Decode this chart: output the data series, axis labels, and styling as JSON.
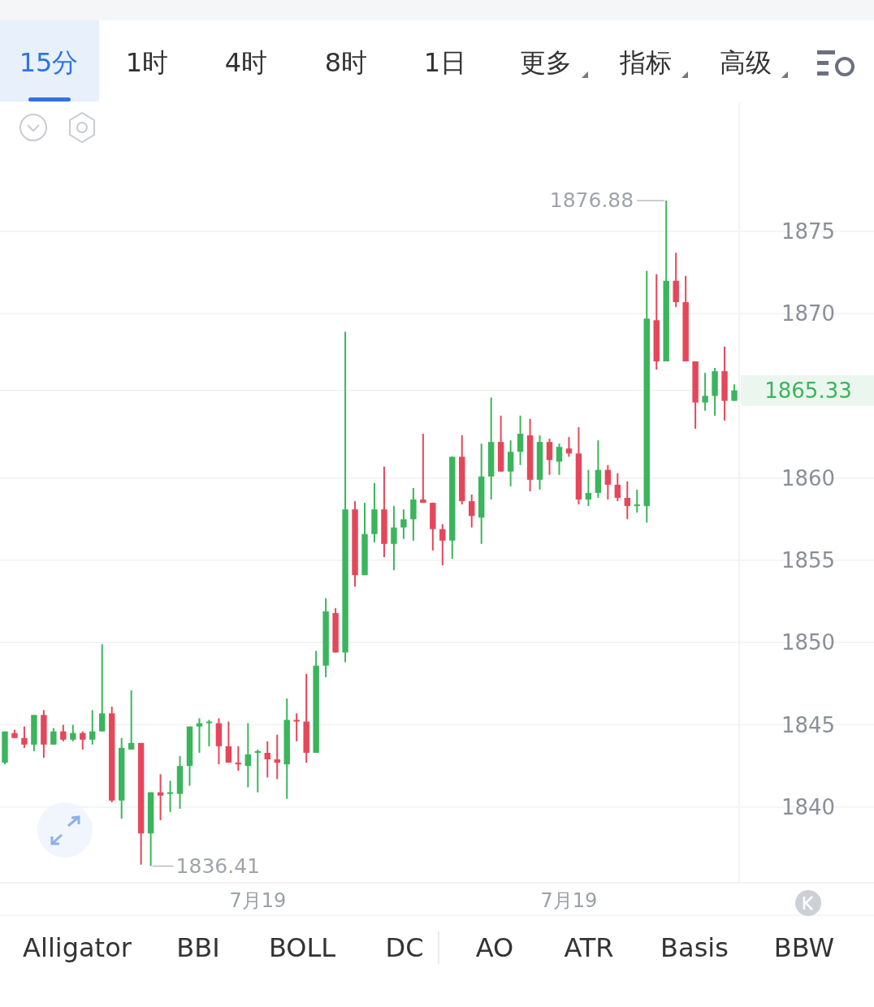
{
  "chart_data": {
    "type": "candlestick",
    "categories": [
      null,
      null,
      null,
      null,
      null,
      null,
      null,
      null,
      null,
      null,
      null,
      null,
      null,
      null,
      null,
      null,
      null,
      null,
      null,
      null,
      null,
      null,
      null,
      null,
      null,
      null,
      "7月19",
      null,
      null,
      null,
      null,
      null,
      null,
      null,
      null,
      null,
      null,
      null,
      null,
      null,
      null,
      null,
      null,
      null,
      null,
      null,
      null,
      null,
      null,
      null,
      null,
      null,
      null,
      null,
      null,
      null,
      null,
      null,
      "7月19",
      null,
      null,
      null,
      null,
      null,
      null,
      null,
      null,
      null,
      null,
      null,
      null,
      null,
      null,
      null,
      null,
      null
    ],
    "ohlc": [
      [
        1842.7,
        1844.6,
        1842.6,
        1844.6
      ],
      [
        1844.5,
        1844.7,
        1844.2,
        1844.2
      ],
      [
        1844.2,
        1844.9,
        1843.6,
        1843.8
      ],
      [
        1843.8,
        1845.6,
        1843.4,
        1845.6
      ],
      [
        1845.6,
        1845.9,
        1843.0,
        1843.8
      ],
      [
        1843.8,
        1844.8,
        1843.8,
        1844.6
      ],
      [
        1844.6,
        1845.0,
        1844.0,
        1844.1
      ],
      [
        1844.1,
        1845.0,
        1844.0,
        1844.5
      ],
      [
        1844.5,
        1844.6,
        1843.5,
        1844.1
      ],
      [
        1844.1,
        1845.9,
        1843.8,
        1844.6
      ],
      [
        1844.6,
        1849.9,
        1844.6,
        1845.7
      ],
      [
        1845.7,
        1846.1,
        1840.3,
        1840.4
      ],
      [
        1840.4,
        1844.2,
        1839.3,
        1843.6
      ],
      [
        1843.5,
        1847.1,
        1843.5,
        1843.9
      ],
      [
        1843.9,
        1843.9,
        1836.5,
        1838.4
      ],
      [
        1838.4,
        1840.9,
        1836.41,
        1840.9
      ],
      [
        1840.9,
        1842.0,
        1839.2,
        1840.7
      ],
      [
        1840.8,
        1841.6,
        1839.7,
        1840.9
      ],
      [
        1840.8,
        1843.1,
        1839.9,
        1842.5
      ],
      [
        1842.5,
        1844.9,
        1841.3,
        1844.9
      ],
      [
        1844.9,
        1845.4,
        1843.3,
        1845.1
      ],
      [
        1845.1,
        1845.3,
        1843.7,
        1845.2
      ],
      [
        1845.1,
        1845.4,
        1842.6,
        1843.7
      ],
      [
        1843.7,
        1845.2,
        1842.7,
        1842.7
      ],
      [
        1842.7,
        1843.7,
        1842.2,
        1842.6
      ],
      [
        1842.5,
        1845.1,
        1841.2,
        1843.2
      ],
      [
        1843.4,
        1843.5,
        1840.9,
        1843.4
      ],
      [
        1843.3,
        1844.0,
        1841.8,
        1842.9
      ],
      [
        1842.9,
        1844.4,
        1841.7,
        1842.7
      ],
      [
        1842.6,
        1846.6,
        1840.5,
        1845.3
      ],
      [
        1845.3,
        1845.7,
        1844.0,
        1845.2
      ],
      [
        1845.2,
        1848.1,
        1842.7,
        1843.3
      ],
      [
        1843.3,
        1849.5,
        1843.3,
        1848.6
      ],
      [
        1848.6,
        1852.7,
        1847.9,
        1851.9
      ],
      [
        1851.8,
        1852.1,
        1849.4,
        1849.4
      ],
      [
        1849.4,
        1868.9,
        1848.8,
        1858.1
      ],
      [
        1858.1,
        1858.6,
        1853.4,
        1854.1
      ],
      [
        1854.1,
        1858.5,
        1854.1,
        1856.6
      ],
      [
        1856.6,
        1859.7,
        1856.1,
        1858.1
      ],
      [
        1858.1,
        1860.7,
        1855.2,
        1856.0
      ],
      [
        1856.0,
        1858.3,
        1854.4,
        1857.0
      ],
      [
        1857.0,
        1858.1,
        1856.3,
        1857.5
      ],
      [
        1857.5,
        1859.4,
        1856.2,
        1858.7
      ],
      [
        1858.7,
        1862.7,
        1858.5,
        1858.5
      ],
      [
        1858.5,
        1858.5,
        1855.6,
        1856.9
      ],
      [
        1856.9,
        1857.2,
        1854.7,
        1856.2
      ],
      [
        1856.2,
        1861.3,
        1855.1,
        1861.3
      ],
      [
        1861.3,
        1862.6,
        1858.4,
        1858.6
      ],
      [
        1858.6,
        1859.0,
        1857.0,
        1857.7
      ],
      [
        1857.6,
        1862.1,
        1856.0,
        1860.1
      ],
      [
        1860.1,
        1864.9,
        1858.7,
        1862.2
      ],
      [
        1862.2,
        1863.8,
        1860.4,
        1860.4
      ],
      [
        1860.4,
        1862.3,
        1859.5,
        1861.6
      ],
      [
        1861.6,
        1863.8,
        1860.8,
        1862.7
      ],
      [
        1862.6,
        1863.6,
        1859.2,
        1859.9
      ],
      [
        1859.9,
        1862.6,
        1859.3,
        1862.2
      ],
      [
        1862.2,
        1862.4,
        1860.2,
        1861.1
      ],
      [
        1861.0,
        1862.1,
        1860.2,
        1861.9
      ],
      [
        1861.8,
        1862.5,
        1861.3,
        1861.5
      ],
      [
        1861.5,
        1863.1,
        1858.4,
        1858.7
      ],
      [
        1858.7,
        1860.5,
        1858.3,
        1859.1
      ],
      [
        1859.1,
        1862.3,
        1858.8,
        1860.5
      ],
      [
        1860.5,
        1860.8,
        1858.7,
        1859.6
      ],
      [
        1859.6,
        1860.3,
        1858.6,
        1858.8
      ],
      [
        1858.8,
        1859.8,
        1857.5,
        1858.3
      ],
      [
        1858.3,
        1859.3,
        1857.9,
        1858.4
      ],
      [
        1858.3,
        1872.6,
        1857.3,
        1869.7
      ],
      [
        1869.6,
        1872.4,
        1866.6,
        1867.1
      ],
      [
        1867.1,
        1876.88,
        1867.1,
        1872.0
      ],
      [
        1872.0,
        1873.7,
        1870.4,
        1870.7
      ],
      [
        1870.7,
        1872.3,
        1867.1,
        1867.1
      ],
      [
        1867.1,
        1867.1,
        1863.0,
        1864.6
      ],
      [
        1864.6,
        1866.4,
        1864.1,
        1865.0
      ],
      [
        1865.0,
        1866.7,
        1863.8,
        1866.5
      ],
      [
        1866.5,
        1868.0,
        1863.5,
        1864.7
      ],
      [
        1864.7,
        1865.7,
        1864.7,
        1865.33
      ]
    ],
    "colors": [
      "#3bb55c",
      "#e5475a",
      "#e5475a",
      "#3bb55c",
      "#e5475a",
      "#3bb55c",
      "#e5475a",
      "#3bb55c",
      "#e5475a",
      "#3bb55c",
      "#3bb55c",
      "#e5475a",
      "#3bb55c",
      "#3bb55c",
      "#e5475a",
      "#3bb55c",
      "#e5475a",
      "#3bb55c",
      "#3bb55c",
      "#3bb55c",
      "#3bb55c",
      "#3bb55c",
      "#e5475a",
      "#e5475a",
      "#e5475a",
      "#3bb55c",
      "#3bb55c",
      "#e5475a",
      "#e5475a",
      "#3bb55c",
      "#e5475a",
      "#e5475a",
      "#3bb55c",
      "#3bb55c",
      "#e5475a",
      "#3bb55c",
      "#e5475a",
      "#3bb55c",
      "#3bb55c",
      "#e5475a",
      "#3bb55c",
      "#3bb55c",
      "#3bb55c",
      "#e5475a",
      "#e5475a",
      "#e5475a",
      "#3bb55c",
      "#e5475a",
      "#e5475a",
      "#3bb55c",
      "#3bb55c",
      "#e5475a",
      "#3bb55c",
      "#3bb55c",
      "#e5475a",
      "#3bb55c",
      "#e5475a",
      "#3bb55c",
      "#e5475a",
      "#e5475a",
      "#3bb55c",
      "#3bb55c",
      "#e5475a",
      "#e5475a",
      "#e5475a",
      "#3bb55c",
      "#3bb55c",
      "#e5475a",
      "#3bb55c",
      "#e5475a",
      "#e5475a",
      "#e5475a",
      "#3bb55c",
      "#3bb55c",
      "#e5475a",
      "#3bb55c"
    ],
    "ylim": [
      1835.4,
      1882.8
    ],
    "yticks": [
      1840,
      1845,
      1850,
      1855,
      1860,
      1870,
      1875
    ],
    "grid": "y",
    "ref_lines": [
      {
        "axis": "y",
        "value": 1865.33,
        "label": "1865.33",
        "color": "#3bb55c"
      }
    ],
    "annotations": [
      "15分",
      "1时",
      "4时",
      "8时",
      "1日",
      "更多",
      "指标",
      "高级",
      "Alligator",
      "BBI",
      "BOLL",
      "DC",
      "AO",
      "ATR",
      "Basis",
      "BBW",
      "1876.88",
      "1836.41"
    ]
  }
}
